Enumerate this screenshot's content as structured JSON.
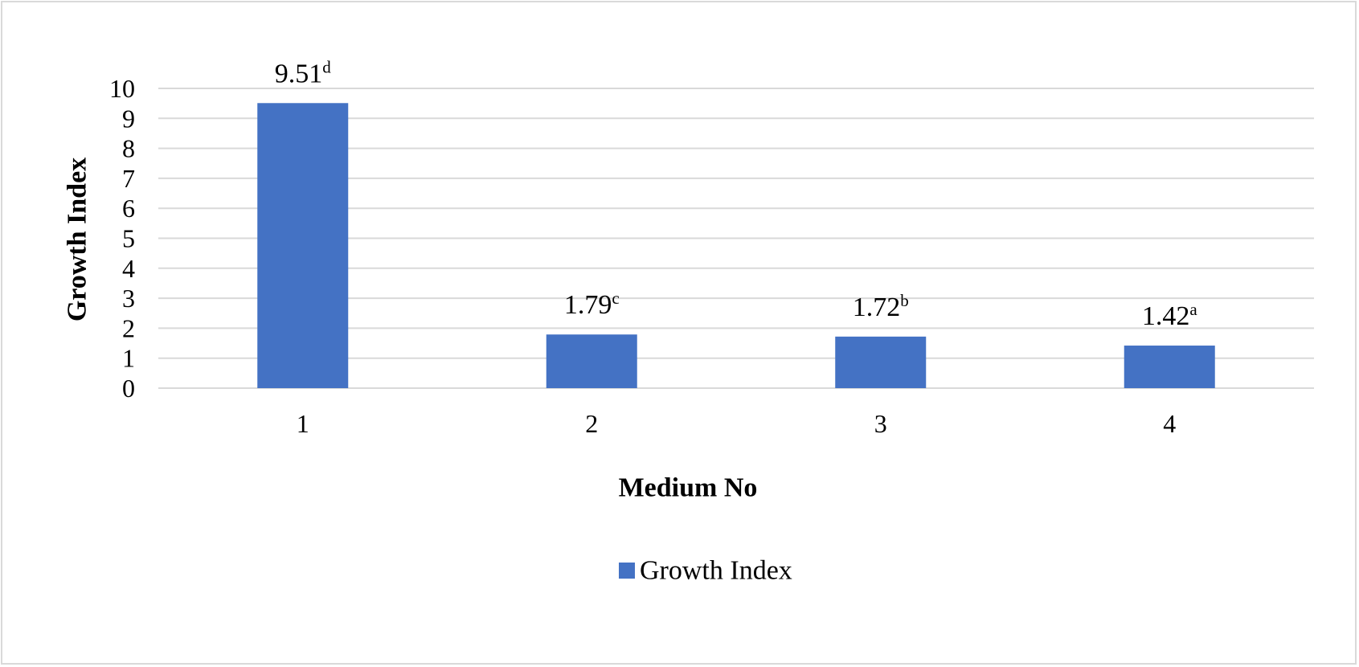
{
  "chart_data": {
    "type": "bar",
    "categories": [
      "1",
      "2",
      "3",
      "4"
    ],
    "series": [
      {
        "name": "Growth Index",
        "values": [
          9.51,
          1.79,
          1.72,
          1.42
        ]
      }
    ],
    "data_labels": [
      {
        "value": "9.51",
        "letter": "d"
      },
      {
        "value": "1.79",
        "letter": "c"
      },
      {
        "value": "1.72",
        "letter": "b"
      },
      {
        "value": "1.42",
        "letter": "a"
      }
    ],
    "title": "",
    "xlabel": "Medium No",
    "ylabel": "Growth Index",
    "ylim": [
      0,
      10
    ],
    "yticks": [
      "0",
      "1",
      "2",
      "3",
      "4",
      "5",
      "6",
      "7",
      "8",
      "9",
      "10"
    ],
    "grid": true,
    "legend": "bottom-center",
    "colors": {
      "bar": "#4472c4",
      "gridline": "#d9d9d9",
      "frame": "#d9d9d9"
    }
  }
}
